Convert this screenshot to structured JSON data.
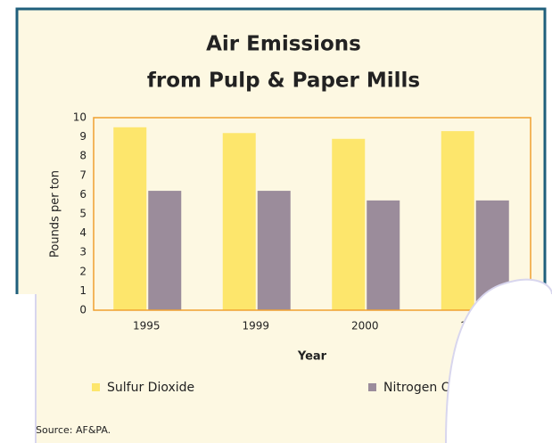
{
  "chart_data": {
    "type": "bar",
    "title": "Air Emissions",
    "subtitle": "from Pulp & Paper Mills",
    "x_label": "Year",
    "y_label": "Pounds per ton",
    "source": "Source: AF&PA.",
    "categories": [
      "1995",
      "1999",
      "2000",
      "2002"
    ],
    "series": [
      {
        "name": "Sulfur Dioxide",
        "color": "#fde66c",
        "values": [
          9.5,
          9.2,
          8.9,
          9.3
        ]
      },
      {
        "name": "Nitrogen Oxides",
        "color": "#9b8c9b",
        "values": [
          6.2,
          6.2,
          5.7,
          5.7
        ]
      }
    ],
    "ylim": [
      0,
      10
    ],
    "yticks": [
      0,
      1,
      2,
      3,
      4,
      5,
      6,
      7,
      8,
      9,
      10
    ],
    "grid": false,
    "legend": "bottom"
  }
}
